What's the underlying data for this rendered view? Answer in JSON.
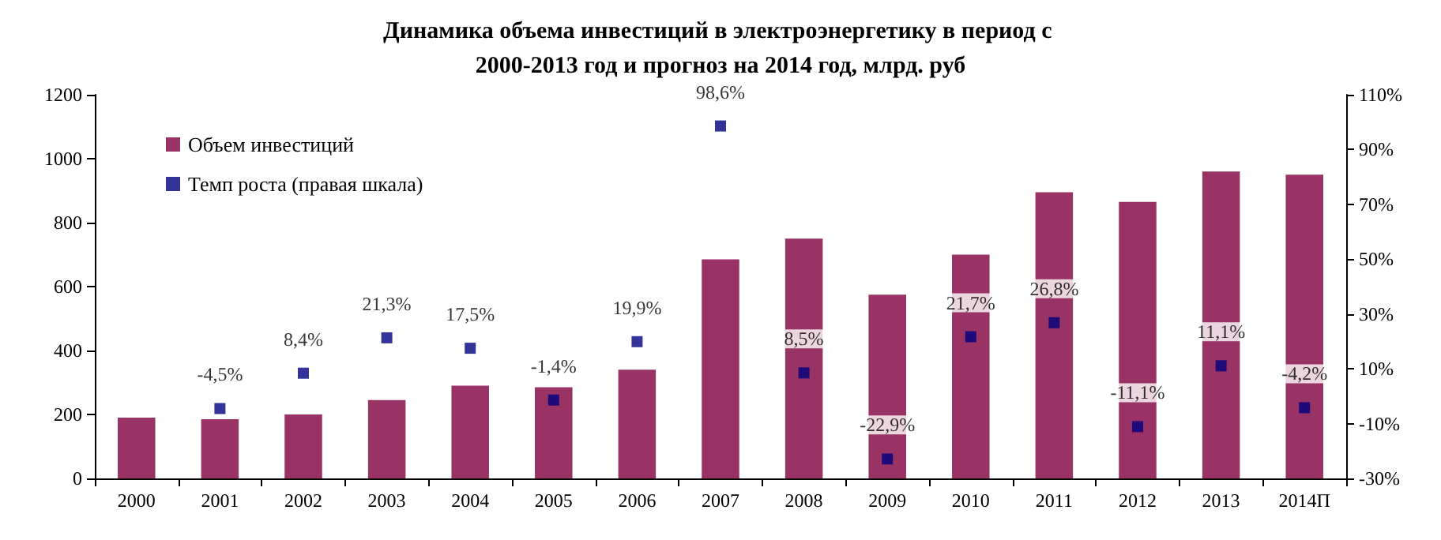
{
  "chart_data": {
    "type": "bar",
    "title": "Динамика объема инвестиций в электроэнергетику в период с 2000-2013 год и прогноз на 2014 год, млрд. руб",
    "categories": [
      "2000",
      "2001",
      "2002",
      "2003",
      "2004",
      "2005",
      "2006",
      "2007",
      "2008",
      "2009",
      "2010",
      "2011",
      "2012",
      "2013",
      "2014П"
    ],
    "series": [
      {
        "name": "Объем инвестиций",
        "color": "#993366",
        "values": [
          190,
          185,
          200,
          245,
          290,
          285,
          340,
          685,
          750,
          575,
          700,
          895,
          865,
          960,
          950
        ]
      },
      {
        "name": "Темп роста (правая шкала)",
        "type": "scatter",
        "axis": "y2",
        "color": "#000080",
        "values": [
          null,
          -4.5,
          8.4,
          21.3,
          17.5,
          -1.4,
          19.9,
          98.6,
          8.5,
          -22.9,
          21.7,
          26.8,
          -11.1,
          11.1,
          -4.2
        ],
        "value_labels": [
          null,
          "-4,5%",
          "8,4%",
          "21,3%",
          "17,5%",
          "-1,4%",
          "19,9%",
          "98,6%",
          "8,5%",
          "-22,9%",
          "21,7%",
          "26,8%",
          "-11,1%",
          "11,1%",
          "-4,2%"
        ]
      }
    ],
    "ylim": [
      0,
      1200
    ],
    "yticks": [
      0,
      200,
      400,
      600,
      800,
      1000,
      1200
    ],
    "y2lim": [
      -30,
      110
    ],
    "y2ticks": [
      {
        "value": -30,
        "label": "-30%"
      },
      {
        "value": -10,
        "label": "-10%"
      },
      {
        "value": 10,
        "label": "10%"
      },
      {
        "value": 30,
        "label": "30%"
      },
      {
        "value": 50,
        "label": "50%"
      },
      {
        "value": 70,
        "label": "70%"
      },
      {
        "value": 90,
        "label": "90%"
      },
      {
        "value": 110,
        "label": "110%"
      }
    ],
    "marker": "square",
    "legend": "top left",
    "grid": false
  }
}
